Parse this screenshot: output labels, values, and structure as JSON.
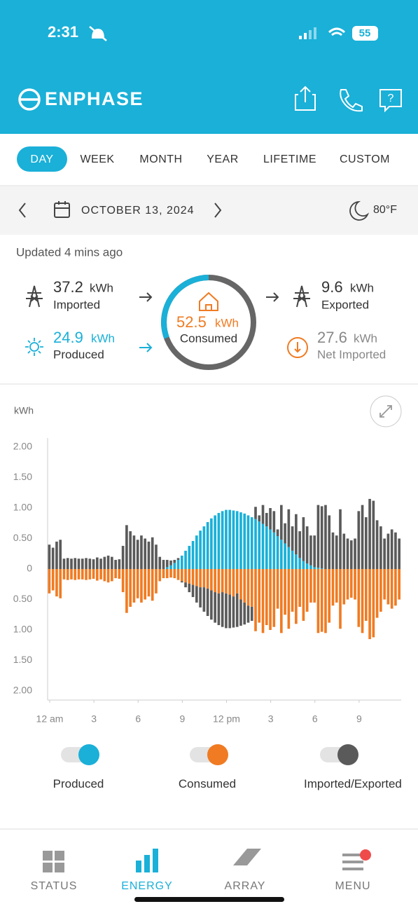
{
  "status_bar": {
    "time": "2:31",
    "battery": "55"
  },
  "header": {
    "brand": "ENPHASE"
  },
  "tabs": [
    "DAY",
    "WEEK",
    "MONTH",
    "YEAR",
    "LIFETIME",
    "CUSTOM"
  ],
  "date_bar": {
    "date": "OCTOBER 13, 2024",
    "weather": "80°F"
  },
  "summary": {
    "updated": "Updated 4 mins ago",
    "imported": {
      "value": 37.2,
      "unit": "kWh",
      "label": "Imported"
    },
    "produced": {
      "value": 24.9,
      "unit": "kWh",
      "label": "Produced"
    },
    "consumed": {
      "value": 52.5,
      "unit": "kWh",
      "label": "Consumed"
    },
    "exported": {
      "value": 9.6,
      "unit": "kWh",
      "label": "Exported"
    },
    "net": {
      "value": 27.6,
      "unit": "kWh",
      "label": "Net Imported"
    }
  },
  "chart_data": {
    "type": "bar",
    "y_label": "kWh",
    "xlim": [
      0,
      96
    ],
    "xticks": [
      {
        "value": 0,
        "label": "12 am"
      },
      {
        "value": 12,
        "label": "3"
      },
      {
        "value": 24,
        "label": "6"
      },
      {
        "value": 36,
        "label": "9"
      },
      {
        "value": 48,
        "label": "12 pm"
      },
      {
        "value": 60,
        "label": "3"
      },
      {
        "value": 72,
        "label": "6"
      },
      {
        "value": 84,
        "label": "9"
      }
    ],
    "ylim": [
      -2,
      2
    ],
    "yticks": [
      {
        "value": 2,
        "label": "2.00"
      },
      {
        "value": 1.5,
        "label": "1.50"
      },
      {
        "value": 1,
        "label": "1.00"
      },
      {
        "value": 0.5,
        "label": "0.50"
      },
      0,
      {
        "value": -0.5,
        "label": "0.50"
      },
      {
        "value": -1,
        "label": "1.00"
      },
      {
        "value": -1.5,
        "label": "1.50"
      },
      {
        "value": -2,
        "label": "2.00"
      }
    ],
    "grid": false,
    "series": [
      {
        "name": "Produced",
        "color": "#1ab0d8",
        "values": [
          0,
          0,
          0,
          0,
          0,
          0,
          0,
          0,
          0,
          0,
          0,
          0,
          0,
          0,
          0,
          0,
          0,
          0,
          0,
          0,
          0,
          0,
          0,
          0,
          0,
          0,
          0,
          0,
          0,
          0,
          0,
          0,
          0.03,
          0.06,
          0.1,
          0.15,
          0.22,
          0.3,
          0.38,
          0.46,
          0.55,
          0.63,
          0.7,
          0.77,
          0.83,
          0.88,
          0.92,
          0.95,
          0.97,
          0.97,
          0.96,
          0.95,
          0.93,
          0.91,
          0.88,
          0.85,
          0.82,
          0.78,
          0.74,
          0.7,
          0.65,
          0.6,
          0.54,
          0.48,
          0.42,
          0.36,
          0.3,
          0.24,
          0.18,
          0.13,
          0.09,
          0.06,
          0.03,
          0.02,
          0.01,
          0,
          0,
          0,
          0,
          0,
          0,
          0,
          0,
          0,
          0,
          0,
          0,
          0,
          0,
          0,
          0,
          0,
          0,
          0,
          0,
          0
        ]
      },
      {
        "name": "Consumed",
        "color": "#f07b22",
        "values": [
          -0.4,
          -0.35,
          -0.45,
          -0.48,
          -0.17,
          -0.18,
          -0.17,
          -0.18,
          -0.17,
          -0.17,
          -0.18,
          -0.17,
          -0.16,
          -0.19,
          -0.17,
          -0.2,
          -0.22,
          -0.2,
          -0.15,
          -0.16,
          -0.38,
          -0.72,
          -0.62,
          -0.55,
          -0.48,
          -0.55,
          -0.5,
          -0.45,
          -0.52,
          -0.4,
          -0.2,
          -0.15,
          -0.15,
          -0.14,
          -0.15,
          -0.18,
          -0.2,
          -0.22,
          -0.24,
          -0.26,
          -0.28,
          -0.3,
          -0.3,
          -0.32,
          -0.35,
          -0.38,
          -0.4,
          -0.38,
          -0.4,
          -0.42,
          -0.45,
          -0.4,
          -0.5,
          -0.55,
          -0.6,
          -0.62,
          -1.02,
          -0.88,
          -1.05,
          -0.92,
          -1.0,
          -0.95,
          -0.65,
          -1.05,
          -0.75,
          -0.98,
          -0.7,
          -0.9,
          -0.62,
          -0.85,
          -0.7,
          -0.55,
          -0.55,
          -1.05,
          -1.03,
          -1.05,
          -0.88,
          -0.6,
          -0.55,
          -0.98,
          -0.58,
          -0.5,
          -0.47,
          -0.5,
          -0.95,
          -1.05,
          -0.85,
          -1.15,
          -1.12,
          -0.8,
          -0.7,
          -0.5,
          -0.58,
          -0.65,
          -0.6,
          -0.5
        ]
      },
      {
        "name": "Imported/Exported",
        "color": "#5a5a5a",
        "values": [
          0.4,
          0.35,
          0.45,
          0.48,
          0.17,
          0.18,
          0.17,
          0.18,
          0.17,
          0.17,
          0.18,
          0.17,
          0.16,
          0.19,
          0.17,
          0.2,
          0.22,
          0.2,
          0.15,
          0.16,
          0.38,
          0.72,
          0.62,
          0.55,
          0.48,
          0.55,
          0.5,
          0.45,
          0.52,
          0.4,
          0.2,
          0.15,
          0.12,
          0.08,
          0.05,
          0.03,
          -0.02,
          -0.08,
          -0.14,
          -0.2,
          -0.27,
          -0.33,
          -0.4,
          -0.45,
          -0.48,
          -0.5,
          -0.52,
          -0.57,
          -0.57,
          -0.55,
          -0.51,
          -0.55,
          -0.43,
          -0.36,
          -0.28,
          -0.23,
          0.2,
          0.1,
          0.31,
          0.22,
          0.35,
          0.35,
          0.11,
          0.57,
          0.33,
          0.62,
          0.4,
          0.66,
          0.44,
          0.72,
          0.61,
          0.49,
          0.52,
          1.03,
          1.02,
          1.05,
          0.88,
          0.6,
          0.55,
          0.98,
          0.58,
          0.5,
          0.47,
          0.5,
          0.95,
          1.05,
          0.85,
          1.15,
          1.12,
          0.8,
          0.7,
          0.5,
          0.58,
          0.65,
          0.6,
          0.5
        ]
      }
    ]
  },
  "nav": [
    "STATUS",
    "ENERGY",
    "ARRAY",
    "MENU"
  ]
}
